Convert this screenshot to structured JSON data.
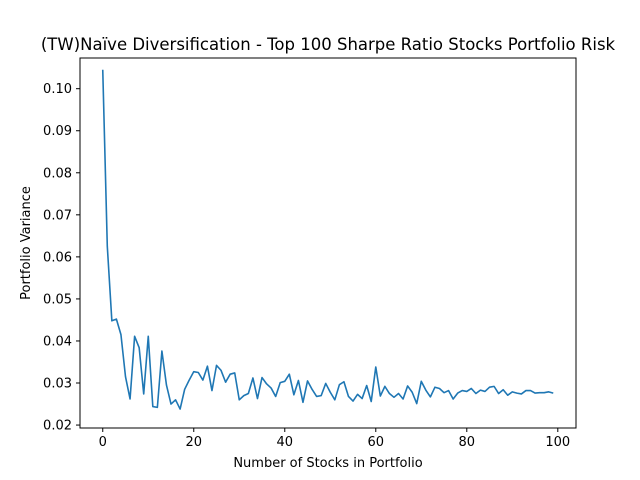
{
  "chart_data": {
    "type": "line",
    "title": "(TW)Naïve Diversification - Top 100 Sharpe Ratio Stocks Portfolio Risk",
    "xlabel": "Number of Stocks in Portfolio",
    "ylabel": "Portfolio Variance",
    "xlim": [
      -5,
      104
    ],
    "ylim": [
      0.0193,
      0.1073
    ],
    "xticks": [
      0,
      20,
      40,
      60,
      80,
      100
    ],
    "yticks": [
      0.02,
      0.03,
      0.04,
      0.05,
      0.06,
      0.07,
      0.08,
      0.09,
      0.1
    ],
    "ytick_labels": [
      "0.02",
      "0.03",
      "0.04",
      "0.05",
      "0.06",
      "0.07",
      "0.08",
      "0.09",
      "0.10"
    ],
    "grid": false,
    "line_color": "#1f77b4",
    "series": [
      {
        "x": [
          0,
          1,
          2,
          3,
          4,
          5,
          6,
          7,
          8,
          9,
          10,
          11,
          12,
          13,
          14,
          15,
          16,
          17,
          18,
          19,
          20,
          21,
          22,
          23,
          24,
          25,
          26,
          27,
          28,
          29,
          30,
          31,
          32,
          33,
          34,
          35,
          36,
          37,
          38,
          39,
          40,
          41,
          42,
          43,
          44,
          45,
          46,
          47,
          48,
          49,
          50,
          51,
          52,
          53,
          54,
          55,
          56,
          57,
          58,
          59,
          60,
          61,
          62,
          63,
          64,
          65,
          66,
          67,
          68,
          69,
          70,
          71,
          72,
          73,
          74,
          75,
          76,
          77,
          78,
          79,
          80,
          81,
          82,
          83,
          84,
          85,
          86,
          87,
          88,
          89,
          90,
          91,
          92,
          93,
          94,
          95,
          96,
          97,
          98,
          99
        ],
        "y": [
          0.1045,
          0.0625,
          0.0448,
          0.0452,
          0.0415,
          0.0315,
          0.0262,
          0.0411,
          0.0384,
          0.0274,
          0.0411,
          0.0244,
          0.0242,
          0.0376,
          0.0295,
          0.025,
          0.026,
          0.0238,
          0.0285,
          0.0307,
          0.0327,
          0.0325,
          0.0307,
          0.034,
          0.0282,
          0.0342,
          0.033,
          0.0302,
          0.0321,
          0.0324,
          0.026,
          0.027,
          0.0275,
          0.0312,
          0.0263,
          0.0313,
          0.0298,
          0.0288,
          0.0268,
          0.0301,
          0.0304,
          0.0321,
          0.0272,
          0.0306,
          0.0254,
          0.0305,
          0.0285,
          0.0268,
          0.027,
          0.0299,
          0.0278,
          0.026,
          0.0296,
          0.0303,
          0.0268,
          0.0257,
          0.0273,
          0.0263,
          0.0294,
          0.0256,
          0.0338,
          0.0269,
          0.0292,
          0.0275,
          0.0266,
          0.0275,
          0.0262,
          0.0293,
          0.0278,
          0.0251,
          0.0304,
          0.0283,
          0.0267,
          0.029,
          0.0287,
          0.0277,
          0.0282,
          0.0262,
          0.0276,
          0.0282,
          0.028,
          0.0287,
          0.0275,
          0.0283,
          0.028,
          0.029,
          0.0292,
          0.0275,
          0.0284,
          0.0271,
          0.0279,
          0.0276,
          0.0274,
          0.0282,
          0.0282,
          0.0276,
          0.0277,
          0.0277,
          0.0279,
          0.0276
        ]
      }
    ]
  }
}
